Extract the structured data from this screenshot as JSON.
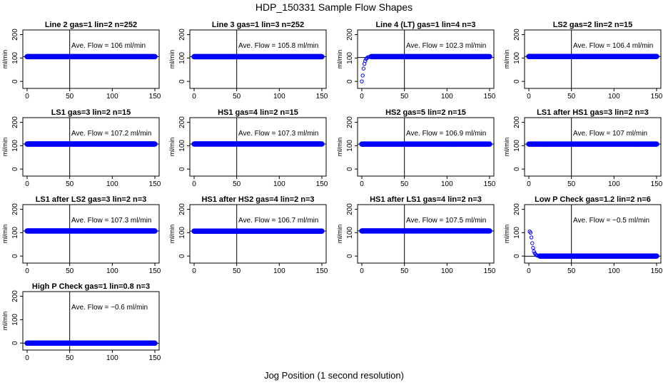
{
  "figure": {
    "title": "HDP_150331  Sample Flow Shapes",
    "xlabel": "Jog Position (1 second resolution)"
  },
  "colors": {
    "points": "#0000ff",
    "axes": "#000000",
    "background": "#ffffff"
  },
  "chart_data": [
    {
      "type": "scatter",
      "title": "Line 2 gas=1 lin=2 n=252",
      "ylabel": "ml/min",
      "xlim": [
        0,
        150
      ],
      "ylim": [
        -30,
        220
      ],
      "xticks": [
        0,
        50,
        100,
        150
      ],
      "yticks": [
        0,
        100,
        200
      ],
      "ref_hline": 106,
      "ref_vline": 50,
      "annotation": "Ave. Flow =  106   ml/min",
      "series": [
        {
          "shape": "flat",
          "x_range": [
            0,
            150
          ],
          "plateau": 106
        }
      ]
    },
    {
      "type": "scatter",
      "title": "Line 3 gas=1 lin=3 n=252",
      "ylabel": "ml/min",
      "xlim": [
        0,
        150
      ],
      "ylim": [
        -30,
        220
      ],
      "xticks": [
        0,
        50,
        100,
        150
      ],
      "yticks": [
        0,
        100,
        200
      ],
      "ref_hline": 105.8,
      "ref_vline": 50,
      "annotation": "Ave. Flow =  105.8   ml/min",
      "series": [
        {
          "shape": "flat",
          "x_range": [
            0,
            150
          ],
          "plateau": 105.8
        }
      ]
    },
    {
      "type": "scatter",
      "title": "Line 4 (LT) gas=1 lin=4 n=3",
      "ylabel": "ml/min",
      "xlim": [
        0,
        150
      ],
      "ylim": [
        -30,
        220
      ],
      "xticks": [
        0,
        50,
        100,
        150
      ],
      "yticks": [
        0,
        100,
        200
      ],
      "ref_hline": 102.3,
      "ref_vline": 50,
      "annotation": "Ave. Flow =  102.3   ml/min",
      "series": [
        {
          "shape": "rise",
          "x_range": [
            0,
            150
          ],
          "plateau": 106,
          "transient": [
            [
              0,
              0
            ],
            [
              1,
              25
            ],
            [
              2,
              55
            ],
            [
              3,
              75
            ],
            [
              4,
              88
            ],
            [
              5,
              96
            ],
            [
              6,
              100
            ],
            [
              7,
              103
            ],
            [
              8,
              104
            ],
            [
              10,
              105
            ]
          ]
        }
      ]
    },
    {
      "type": "scatter",
      "title": "LS2 gas=2 lin=2 n=15",
      "ylabel": "ml/min",
      "xlim": [
        0,
        150
      ],
      "ylim": [
        -30,
        220
      ],
      "xticks": [
        0,
        50,
        100,
        150
      ],
      "yticks": [
        0,
        100,
        200
      ],
      "ref_hline": 106.4,
      "ref_vline": 50,
      "annotation": "Ave. Flow =  106.4   ml/min",
      "series": [
        {
          "shape": "flat",
          "x_range": [
            0,
            150
          ],
          "plateau": 106.4
        }
      ]
    },
    {
      "type": "scatter",
      "title": "LS1 gas=3 lin=2 n=15",
      "ylabel": "ml/min",
      "xlim": [
        0,
        150
      ],
      "ylim": [
        -30,
        220
      ],
      "xticks": [
        0,
        50,
        100,
        150
      ],
      "yticks": [
        0,
        100,
        200
      ],
      "ref_hline": 107.2,
      "ref_vline": 50,
      "annotation": "Ave. Flow =  107.2   ml/min",
      "series": [
        {
          "shape": "flat",
          "x_range": [
            0,
            150
          ],
          "plateau": 107.2
        }
      ]
    },
    {
      "type": "scatter",
      "title": "HS1 gas=4 lin=2 n=15",
      "ylabel": "ml/min",
      "xlim": [
        0,
        150
      ],
      "ylim": [
        -30,
        220
      ],
      "xticks": [
        0,
        50,
        100,
        150
      ],
      "yticks": [
        0,
        100,
        200
      ],
      "ref_hline": 107.3,
      "ref_vline": 50,
      "annotation": "Ave. Flow =  107.3   ml/min",
      "series": [
        {
          "shape": "flat",
          "x_range": [
            0,
            150
          ],
          "plateau": 107.3
        }
      ]
    },
    {
      "type": "scatter",
      "title": "HS2 gas=5 lin=2 n=15",
      "ylabel": "ml/min",
      "xlim": [
        0,
        150
      ],
      "ylim": [
        -30,
        220
      ],
      "xticks": [
        0,
        50,
        100,
        150
      ],
      "yticks": [
        0,
        100,
        200
      ],
      "ref_hline": 106.9,
      "ref_vline": 50,
      "annotation": "Ave. Flow =  106.9   ml/min",
      "series": [
        {
          "shape": "flat",
          "x_range": [
            0,
            150
          ],
          "plateau": 106.9
        }
      ]
    },
    {
      "type": "scatter",
      "title": "LS1 after HS1 gas=3 lin=2 n=3",
      "ylabel": "ml/min",
      "xlim": [
        0,
        150
      ],
      "ylim": [
        -30,
        220
      ],
      "xticks": [
        0,
        50,
        100,
        150
      ],
      "yticks": [
        0,
        100,
        200
      ],
      "ref_hline": 107,
      "ref_vline": 50,
      "annotation": "Ave. Flow =  107   ml/min",
      "series": [
        {
          "shape": "flat",
          "x_range": [
            0,
            150
          ],
          "plateau": 107
        }
      ]
    },
    {
      "type": "scatter",
      "title": "LS1 after LS2 gas=3 lin=2 n=3",
      "ylabel": "ml/min",
      "xlim": [
        0,
        150
      ],
      "ylim": [
        -30,
        220
      ],
      "xticks": [
        0,
        50,
        100,
        150
      ],
      "yticks": [
        0,
        100,
        200
      ],
      "ref_hline": 107.3,
      "ref_vline": 50,
      "annotation": "Ave. Flow =  107.3   ml/min",
      "series": [
        {
          "shape": "flat",
          "x_range": [
            0,
            150
          ],
          "plateau": 107.3
        }
      ]
    },
    {
      "type": "scatter",
      "title": "HS1 after HS2 gas=4 lin=2 n=3",
      "ylabel": "ml/min",
      "xlim": [
        0,
        150
      ],
      "ylim": [
        -30,
        220
      ],
      "xticks": [
        0,
        50,
        100,
        150
      ],
      "yticks": [
        0,
        100,
        200
      ],
      "ref_hline": 106.7,
      "ref_vline": 50,
      "annotation": "Ave. Flow =  106.7   ml/min",
      "series": [
        {
          "shape": "flat",
          "x_range": [
            0,
            150
          ],
          "plateau": 106.7
        }
      ]
    },
    {
      "type": "scatter",
      "title": "HS1 after LS1 gas=4 lin=2 n=3",
      "ylabel": "ml/min",
      "xlim": [
        0,
        150
      ],
      "ylim": [
        -30,
        220
      ],
      "xticks": [
        0,
        50,
        100,
        150
      ],
      "yticks": [
        0,
        100,
        200
      ],
      "ref_hline": 107.5,
      "ref_vline": 50,
      "annotation": "Ave. Flow =  107.5   ml/min",
      "series": [
        {
          "shape": "flat",
          "x_range": [
            0,
            150
          ],
          "plateau": 107.5
        }
      ]
    },
    {
      "type": "scatter",
      "title": "Low P Check gas=1.2 lin=2 n=6",
      "ylabel": "ml/min",
      "xlim": [
        0,
        150
      ],
      "ylim": [
        -30,
        220
      ],
      "xticks": [
        0,
        50,
        100,
        150
      ],
      "yticks": [
        0,
        100,
        200
      ],
      "ref_hline": -0.5,
      "ref_vline": 50,
      "annotation": "Ave. Flow =  −0.5   ml/min",
      "series": [
        {
          "shape": "decay",
          "x_range": [
            0,
            150
          ],
          "plateau": 0,
          "transient": [
            [
              1,
              105
            ],
            [
              2,
              100
            ],
            [
              3,
              80
            ],
            [
              4,
              55
            ],
            [
              5,
              35
            ],
            [
              6,
              20
            ],
            [
              7,
              12
            ],
            [
              8,
              7
            ],
            [
              9,
              4
            ],
            [
              10,
              2
            ],
            [
              12,
              1
            ]
          ]
        }
      ]
    },
    {
      "type": "scatter",
      "title": "High P Check gas=1 lin=0.8 n=3",
      "ylabel": "ml/min",
      "xlim": [
        0,
        150
      ],
      "ylim": [
        -30,
        220
      ],
      "xticks": [
        0,
        50,
        100,
        150
      ],
      "yticks": [
        0,
        100,
        200
      ],
      "ref_hline": -0.6,
      "ref_vline": 50,
      "annotation": "Ave. Flow =  −0.6   ml/min",
      "series": [
        {
          "shape": "flat",
          "x_range": [
            0,
            150
          ],
          "plateau": -0.6
        }
      ]
    }
  ]
}
